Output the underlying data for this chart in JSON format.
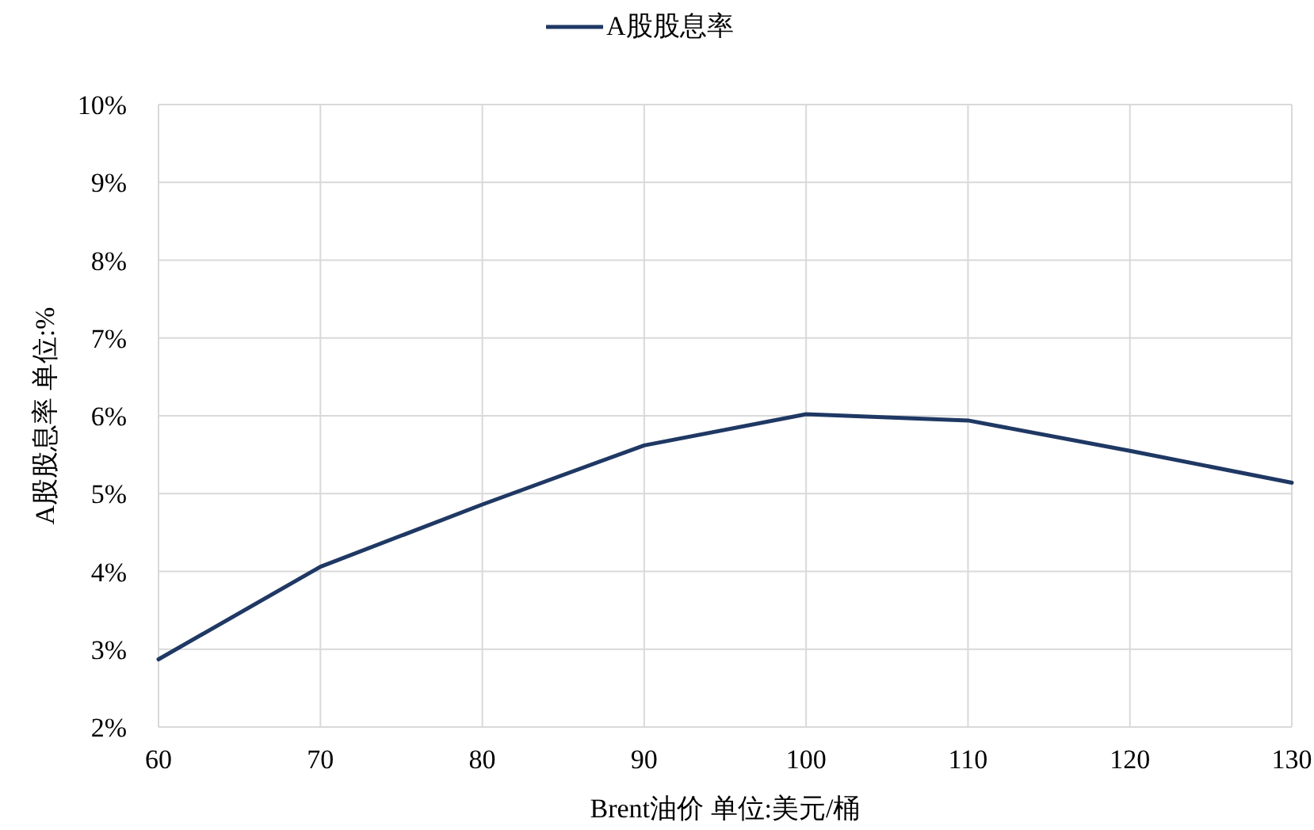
{
  "chart_data": {
    "type": "line",
    "xlabel": "Brent油价  单位:美元/桶",
    "ylabel": "A股股息率 单位:%",
    "x": [
      60,
      70,
      80,
      90,
      100,
      110,
      120,
      130
    ],
    "series": [
      {
        "name": "A股股息率",
        "color": "#1f3864",
        "values": [
          2.87,
          4.06,
          4.86,
          5.62,
          6.02,
          5.94,
          5.55,
          5.14
        ]
      }
    ],
    "xlim": [
      60,
      130
    ],
    "xticks": [
      60,
      70,
      80,
      90,
      100,
      110,
      120,
      130
    ],
    "ylim": [
      2,
      10
    ],
    "yticks": [
      {
        "value": 2,
        "label": "2%"
      },
      {
        "value": 3,
        "label": "3%"
      },
      {
        "value": 4,
        "label": "4%"
      },
      {
        "value": 5,
        "label": "5%"
      },
      {
        "value": 6,
        "label": "6%"
      },
      {
        "value": 7,
        "label": "7%"
      },
      {
        "value": 8,
        "label": "8%"
      },
      {
        "value": 9,
        "label": "9%"
      },
      {
        "value": 10,
        "label": "10%"
      }
    ],
    "grid": true,
    "legend": "top",
    "marker": "none",
    "line_style": "solid"
  }
}
